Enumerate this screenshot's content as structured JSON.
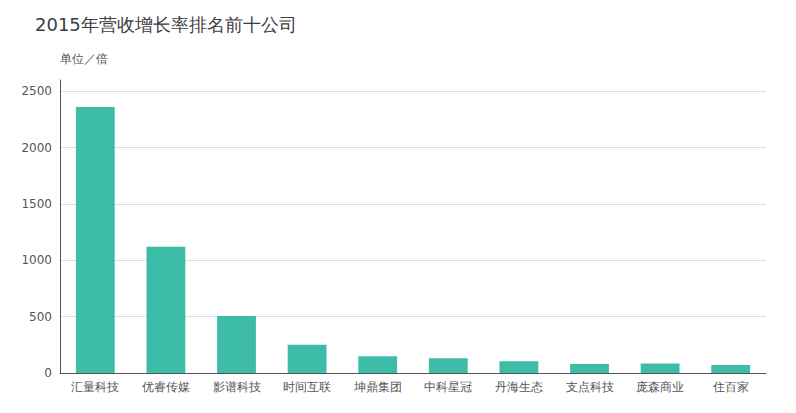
{
  "chart_data": {
    "type": "bar",
    "title": "2015年营收增长率排名前十公司",
    "ylabel": "单位／倍",
    "categories": [
      "汇量科技",
      "优睿传媒",
      "影谱科技",
      "时间互联",
      "坤鼎集团",
      "中科星冠",
      "丹海生态",
      "支点科技",
      "庞森商业",
      "住百家"
    ],
    "values": [
      2360,
      1120,
      505,
      250,
      148,
      130,
      105,
      80,
      85,
      72
    ],
    "color": "#3dbda7",
    "ylim": [
      0,
      2600
    ],
    "yticks": [
      0,
      500,
      1000,
      1500,
      2000,
      2500
    ],
    "grid": true
  }
}
